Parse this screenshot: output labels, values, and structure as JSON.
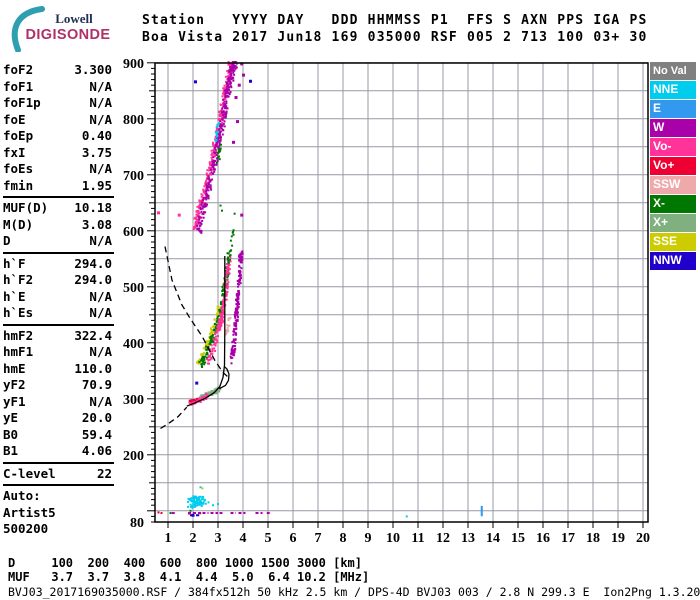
{
  "logo": {
    "top": "Lowell",
    "bottom": "DIGISONDE",
    "arc_color": "#2E9FB0",
    "top_color": "#222F55",
    "bottom_color": "#B13068"
  },
  "header": {
    "line1": "Station   YYYY DAY   DDD HHMMSS P1  FFS S AXN PPS IGA PS",
    "line2": "Boa Vista 2017 Jun18 169 035000 RSF 005 2 713 100 03+ 30"
  },
  "parameters": {
    "groups": [
      {
        "rows": [
          [
            "foF2",
            "3.300"
          ],
          [
            "foF1",
            "N/A"
          ],
          [
            "foF1p",
            "N/A"
          ],
          [
            "foE",
            "N/A"
          ],
          [
            "foEp",
            "0.40"
          ],
          [
            "fxI",
            "3.75"
          ],
          [
            "foEs",
            "N/A"
          ],
          [
            "fmin",
            "1.95"
          ]
        ]
      },
      {
        "rows": [
          [
            "MUF(D)",
            "10.18"
          ],
          [
            "M(D)",
            "3.08"
          ],
          [
            "D",
            "N/A"
          ]
        ]
      },
      {
        "rows": [
          [
            "h`F",
            "294.0"
          ],
          [
            "h`F2",
            "294.0"
          ],
          [
            "h`E",
            "N/A"
          ],
          [
            "h`Es",
            "N/A"
          ]
        ]
      },
      {
        "rows": [
          [
            "hmF2",
            "322.4"
          ],
          [
            "hmF1",
            "N/A"
          ],
          [
            "hmE",
            "110.0"
          ],
          [
            "yF2",
            "70.9"
          ],
          [
            "yF1",
            "N/A"
          ],
          [
            "yE",
            "20.0"
          ],
          [
            "B0",
            "59.4"
          ],
          [
            "B1",
            "4.06"
          ]
        ]
      },
      {
        "rows": [
          [
            "C-level",
            "22"
          ]
        ]
      }
    ],
    "footer": [
      "Auto:",
      "Artist5",
      "500200"
    ]
  },
  "legend": {
    "items": [
      {
        "label": "No Val",
        "color": "#808080"
      },
      {
        "label": "NNE",
        "color": "#00CCEE"
      },
      {
        "label": "E",
        "color": "#3399EE"
      },
      {
        "label": "W",
        "color": "#AA00AA"
      },
      {
        "label": "Vo-",
        "color": "#FF3399"
      },
      {
        "label": "Vo+",
        "color": "#EE0033"
      },
      {
        "label": "SSW",
        "color": "#EEAAAA"
      },
      {
        "label": "X-",
        "color": "#007700"
      },
      {
        "label": "X+",
        "color": "#80B080"
      },
      {
        "label": "SSE",
        "color": "#CCCC00"
      },
      {
        "label": "NNW",
        "color": "#2200CC"
      }
    ]
  },
  "bottom": {
    "d_line": "D     100  200  400  600  800 1000 1500 3000 [km]",
    "muf_line": "MUF   3.7  3.7  3.8  4.1  4.4  5.0  6.4 10.2 [MHz]",
    "file_line": "BVJ03_2017169035000.RSF / 384fx512h 50 kHz 2.5 km / DPS-4D BVJ03 003 / 2.8 N 299.3 E  Ion2Png 1.3.20"
  },
  "chart_data": {
    "type": "scatter",
    "title": "Digisonde ionogram, Boa Vista 2017 Jun18 035000 UT",
    "x_axis": {
      "unit": "MHz",
      "min": 0.48,
      "max": 20.2,
      "tick_start": 1,
      "tick_end": 20,
      "tick_step": 1
    },
    "y_axis": {
      "unit": "km",
      "min": 80,
      "max": 900,
      "grid_step": 50,
      "labels": [
        900,
        800,
        700,
        600,
        500,
        400,
        300,
        200,
        80
      ]
    },
    "grid_color": "#9999A6",
    "bands": [
      {
        "name": "second-hop-trace-pink",
        "color": "#FF3399",
        "n": 260,
        "jf": 0.09,
        "jh": 7,
        "path": [
          [
            2.05,
            598
          ],
          [
            2.25,
            638
          ],
          [
            2.5,
            678
          ],
          [
            2.75,
            722
          ],
          [
            2.95,
            765
          ],
          [
            3.12,
            808
          ],
          [
            3.28,
            848
          ],
          [
            3.42,
            880
          ],
          [
            3.52,
            900
          ]
        ]
      },
      {
        "name": "second-hop-trace-magenta",
        "color": "#AA00AA",
        "n": 300,
        "jf": 0.11,
        "jh": 7,
        "path": [
          [
            2.22,
            600
          ],
          [
            2.42,
            640
          ],
          [
            2.66,
            684
          ],
          [
            2.9,
            728
          ],
          [
            3.1,
            772
          ],
          [
            3.26,
            812
          ],
          [
            3.4,
            852
          ],
          [
            3.55,
            884
          ],
          [
            3.68,
            902
          ]
        ]
      },
      {
        "name": "spread-f-yellow",
        "color": "#CCCC00",
        "n": 80,
        "jf": 0.07,
        "jh": 5,
        "path": [
          [
            2.18,
            362
          ],
          [
            2.4,
            382
          ],
          [
            2.62,
            404
          ],
          [
            2.82,
            428
          ],
          [
            3.0,
            452
          ],
          [
            3.12,
            472
          ]
        ]
      },
      {
        "name": "spread-f-green",
        "color": "#007700",
        "n": 170,
        "jf": 0.08,
        "jh": 6,
        "path": [
          [
            2.32,
            360
          ],
          [
            2.56,
            384
          ],
          [
            2.8,
            410
          ],
          [
            3.0,
            438
          ],
          [
            3.16,
            468
          ],
          [
            3.28,
            502
          ],
          [
            3.38,
            534
          ],
          [
            3.45,
            560
          ]
        ]
      },
      {
        "name": "spread-f-pink",
        "color": "#FF3399",
        "n": 150,
        "jf": 0.08,
        "jh": 6,
        "path": [
          [
            2.56,
            362
          ],
          [
            2.8,
            390
          ],
          [
            3.0,
            418
          ],
          [
            3.16,
            448
          ],
          [
            3.28,
            482
          ],
          [
            3.36,
            516
          ],
          [
            3.44,
            552
          ]
        ]
      },
      {
        "name": "spread-f-magenta",
        "color": "#AA00AA",
        "n": 170,
        "jf": 0.07,
        "jh": 6,
        "path": [
          [
            3.56,
            368
          ],
          [
            3.64,
            400
          ],
          [
            3.72,
            436
          ],
          [
            3.78,
            472
          ],
          [
            3.84,
            508
          ],
          [
            3.9,
            545
          ],
          [
            3.93,
            560
          ]
        ]
      },
      {
        "name": "f-trace-red",
        "color": "#EE0033",
        "n": 45,
        "jf": 0.05,
        "jh": 2.5,
        "path": [
          [
            1.86,
            294
          ],
          [
            2.0,
            296
          ],
          [
            2.16,
            298
          ],
          [
            2.32,
            301
          ],
          [
            2.46,
            304
          ]
        ]
      },
      {
        "name": "f-trace-light-green",
        "color": "#80B080",
        "n": 110,
        "jf": 0.06,
        "jh": 4,
        "path": [
          [
            2.3,
            302
          ],
          [
            2.5,
            305
          ],
          [
            2.72,
            309
          ],
          [
            2.92,
            314
          ],
          [
            3.08,
            320
          ]
        ]
      },
      {
        "name": "f-trace-pink",
        "color": "#FF3399",
        "n": 35,
        "jf": 0.06,
        "jh": 3,
        "path": [
          [
            1.9,
            291
          ],
          [
            2.1,
            294
          ],
          [
            2.3,
            298
          ],
          [
            2.5,
            303
          ],
          [
            2.64,
            308
          ]
        ]
      },
      {
        "name": "e-region-cyan-cluster",
        "color": "#00CCEE",
        "n": 95,
        "jf": 0.18,
        "jh": 9,
        "path": [
          [
            1.9,
            112
          ],
          [
            2.05,
            118
          ],
          [
            2.2,
            120
          ],
          [
            2.35,
            115
          ]
        ]
      },
      {
        "name": "upper-cyan-bits",
        "color": "#00CCEE",
        "n": 14,
        "jf": 0.05,
        "jh": 5,
        "path": [
          [
            2.9,
            762
          ],
          [
            2.98,
            778
          ],
          [
            3.05,
            795
          ]
        ]
      },
      {
        "name": "upper-green-bits",
        "color": "#007700",
        "n": 14,
        "jf": 0.05,
        "jh": 5,
        "path": [
          [
            2.98,
            718
          ],
          [
            3.06,
            738
          ],
          [
            3.12,
            755
          ]
        ]
      },
      {
        "name": "sparse-green-column",
        "color": "#007700",
        "n": 10,
        "jf": 0.04,
        "jh": 8,
        "path": [
          [
            3.52,
            565
          ],
          [
            3.6,
            600
          ],
          [
            3.66,
            635
          ]
        ]
      },
      {
        "name": "salmon-bits",
        "color": "#EEAAAA",
        "n": 16,
        "jf": 0.06,
        "jh": 6,
        "path": [
          [
            3.3,
            412
          ],
          [
            3.4,
            430
          ],
          [
            3.48,
            448
          ]
        ]
      }
    ],
    "dots": [
      {
        "name": "magenta-singles",
        "color": "#AA00AA",
        "size": 3,
        "points": [
          [
            3.95,
            898
          ],
          [
            4.02,
            878
          ],
          [
            3.85,
            860
          ],
          [
            3.72,
            838
          ],
          [
            3.78,
            795
          ],
          [
            3.62,
            758
          ],
          [
            2.48,
            648
          ],
          [
            3.95,
            628
          ]
        ]
      },
      {
        "name": "pink-singles",
        "color": "#FF3399",
        "size": 3,
        "points": [
          [
            0.62,
            632
          ],
          [
            1.45,
            628
          ]
        ]
      },
      {
        "name": "nnw-blue-singles",
        "color": "#2200CC",
        "size": 3,
        "points": [
          [
            2.1,
            866
          ],
          [
            4.3,
            867
          ],
          [
            2.15,
            328
          ],
          [
            2.0,
            92
          ]
        ]
      },
      {
        "name": "cyan-singles",
        "color": "#00CCEE",
        "size": 2,
        "points": [
          [
            2.62,
            115
          ],
          [
            2.8,
            110
          ],
          [
            3.0,
            112
          ],
          [
            2.3,
            142
          ],
          [
            10.55,
            90
          ]
        ]
      },
      {
        "name": "green-singles",
        "color": "#007700",
        "size": 2,
        "points": [
          [
            1.9,
            100
          ],
          [
            2.05,
            96
          ],
          [
            1.1,
            96
          ],
          [
            3.1,
            645
          ],
          [
            3.16,
            636
          ]
        ]
      },
      {
        "name": "red-singles",
        "color": "#EE0033",
        "size": 2,
        "points": [
          [
            0.62,
            97
          ],
          [
            0.74,
            96
          ],
          [
            1.85,
            95
          ]
        ]
      },
      {
        "name": "yellow-singles",
        "color": "#CCCC00",
        "size": 2,
        "points": [
          [
            2.38,
            140
          ],
          [
            2.3,
            95
          ]
        ]
      },
      {
        "name": "e-blue-dash",
        "color": "#3399EE",
        "size": 2,
        "points": [
          [
            13.55,
            92
          ],
          [
            13.55,
            95
          ],
          [
            13.55,
            98
          ],
          [
            13.55,
            101
          ],
          [
            13.55,
            104
          ],
          [
            13.55,
            107
          ]
        ]
      }
    ],
    "row_segments": {
      "h": 96,
      "color": "#AA00AA",
      "segments": [
        [
          1.15,
          1.3
        ],
        [
          1.8,
          2.32
        ],
        [
          2.38,
          2.62
        ],
        [
          2.7,
          3.0
        ],
        [
          3.06,
          3.22
        ],
        [
          3.5,
          3.72
        ],
        [
          3.82,
          4.1
        ],
        [
          4.5,
          4.78
        ],
        [
          4.95,
          5.15
        ]
      ]
    },
    "blue_row": {
      "h": 92,
      "color": "#2200CC",
      "segments": [
        [
          1.88,
          2.25
        ]
      ]
    },
    "lines": [
      {
        "name": "profile-solid",
        "style": "solid",
        "points": [
          [
            1.75,
            287
          ],
          [
            2.1,
            293
          ],
          [
            2.5,
            301
          ],
          [
            2.85,
            311
          ],
          [
            3.07,
            322
          ],
          [
            3.2,
            338
          ],
          [
            3.26,
            360
          ],
          [
            3.27,
            420
          ],
          [
            3.27,
            480
          ],
          [
            3.27,
            555
          ]
        ]
      },
      {
        "name": "profile-peak-hook",
        "style": "solid",
        "points": [
          [
            3.05,
            318
          ],
          [
            3.3,
            324
          ],
          [
            3.42,
            333
          ],
          [
            3.44,
            344
          ],
          [
            3.36,
            353
          ],
          [
            3.27,
            357
          ]
        ]
      },
      {
        "name": "topside-model-dashed",
        "style": "dashed",
        "points": [
          [
            0.88,
            572
          ],
          [
            1.16,
            512
          ],
          [
            1.55,
            468
          ],
          [
            1.88,
            444
          ],
          [
            2.36,
            412
          ],
          [
            2.88,
            368
          ],
          [
            3.2,
            347
          ],
          [
            3.45,
            337
          ]
        ]
      },
      {
        "name": "bottom-model-dashed",
        "style": "dashed",
        "points": [
          [
            0.7,
            247
          ],
          [
            1.05,
            257
          ],
          [
            1.4,
            268
          ],
          [
            1.75,
            285
          ]
        ]
      }
    ]
  }
}
